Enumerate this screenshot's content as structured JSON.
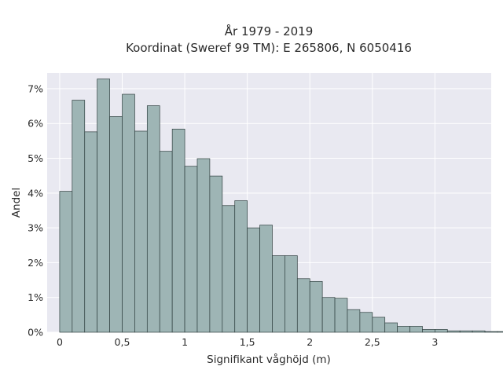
{
  "chart_data": {
    "type": "bar",
    "subtype": "histogram",
    "title": "År 1979 - 2019",
    "subtitle": "Koordinat (Sweref 99 TM): E 265806, N 6050416",
    "xlabel": "Signifikant våghöjd (m)",
    "ylabel": "Andel",
    "bin_width": 0.1,
    "bin_start": 0,
    "xlim": [
      -0.1,
      3.45
    ],
    "ylim": [
      0,
      7.45
    ],
    "x_ticks": [
      0,
      0.5,
      1,
      1.5,
      2,
      2.5,
      3
    ],
    "x_tick_labels": [
      "0",
      "0,5",
      "1",
      "1,5",
      "2",
      "2,5",
      "3"
    ],
    "y_ticks": [
      0,
      1,
      2,
      3,
      4,
      5,
      6,
      7
    ],
    "y_tick_labels": [
      "0%",
      "1%",
      "2%",
      "3%",
      "4%",
      "5%",
      "6%",
      "7%"
    ],
    "y_unit": "percent",
    "grid": true,
    "colors": {
      "plot_bg": "#e9e9f1",
      "grid": "#ffffff",
      "bar_fill": "#9eb5b5",
      "bar_edge": "#2f3f3f"
    },
    "values": [
      4.05,
      6.67,
      5.76,
      7.28,
      6.2,
      6.84,
      5.78,
      6.51,
      5.2,
      5.84,
      4.77,
      4.99,
      4.49,
      3.64,
      3.78,
      3.0,
      3.08,
      2.2,
      2.2,
      1.54,
      1.46,
      1.0,
      0.98,
      0.65,
      0.57,
      0.43,
      0.27,
      0.17,
      0.17,
      0.08,
      0.08,
      0.04,
      0.04,
      0.04,
      0.02,
      0.02,
      0.02,
      0.02,
      0.02
    ]
  }
}
